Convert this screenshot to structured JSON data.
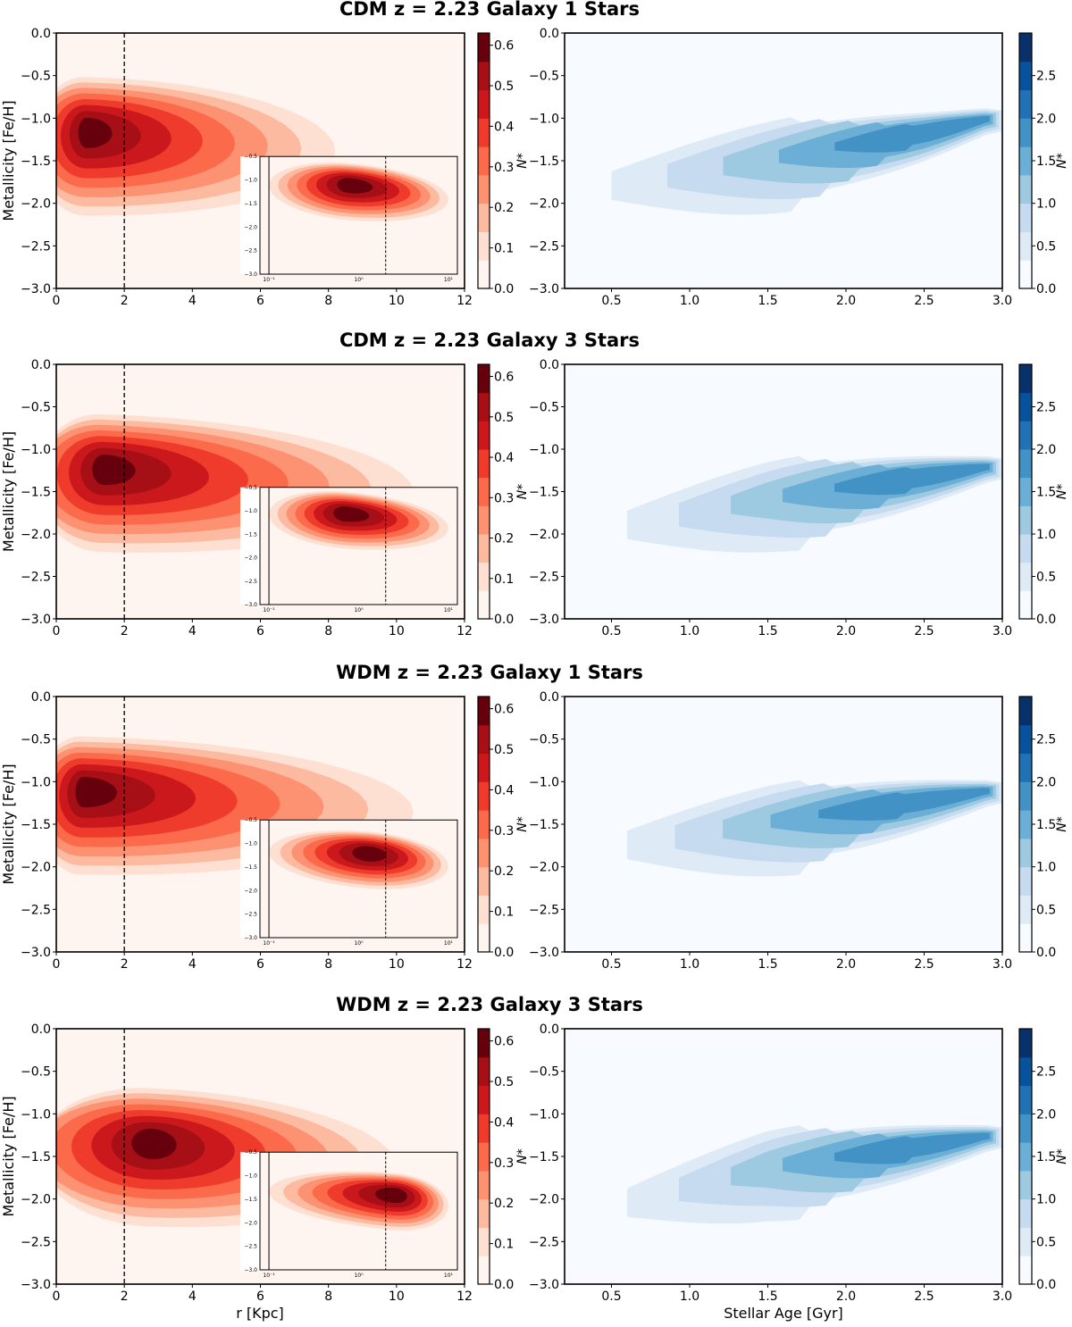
{
  "figure": {
    "x_label_left": "r [Kpc]",
    "x_label_right": "Stellar Age [Gyr]"
  },
  "colors": {
    "reds": [
      "#fff5f0",
      "#fee0d2",
      "#fcbba1",
      "#fc9272",
      "#fb6a4a",
      "#ef3b2c",
      "#cb181d",
      "#a50f15",
      "#67000d"
    ],
    "blues": [
      "#f7fbff",
      "#deebf7",
      "#c6dbef",
      "#9ecae1",
      "#6baed6",
      "#4292c6",
      "#2171b5",
      "#08519c",
      "#08306b"
    ]
  },
  "chart_data": [
    {
      "type": "heatmap",
      "title": "CDM z = 2.23 Galaxy 1 Stars",
      "left": {
        "xlabel": "r [Kpc]",
        "ylabel": "Metallicity [Fe/H]",
        "xlim": [
          0,
          12
        ],
        "ylim": [
          -3.0,
          0.0
        ],
        "xticks": [
          "0",
          "2",
          "4",
          "6",
          "8",
          "10",
          "12"
        ],
        "yticks": [
          "0.0",
          "-0.5",
          "-1.0",
          "-1.5",
          "-2.0",
          "-2.5",
          "-3.0"
        ],
        "vline_r": 2,
        "peak_r": 0.8,
        "peak_feh": -1.15,
        "tail_feh": -1.2,
        "slope": -0.01,
        "peak_level": 8,
        "extent_r": 8.2,
        "colorbar_label": "N*",
        "colorbar_ticks": [
          "0.0",
          "0.1",
          "0.2",
          "0.3",
          "0.4",
          "0.5",
          "0.6"
        ],
        "colorbar_max": 0.63,
        "inset": {
          "xscale": "log",
          "xticks": [
            "10⁻¹",
            "10⁰",
            "10¹"
          ],
          "yticks": [
            "-0.5",
            "-1.0",
            "-1.5",
            "-2.0",
            "-2.5",
            "-3.0"
          ],
          "solid_vline_r": 0.1,
          "dashed_vline_r": 2,
          "peak_logr": -0.1,
          "peak_feh": -1.1,
          "peak_level": 8
        }
      },
      "right": {
        "xlabel": "Stellar Age [Gyr]",
        "xlim": [
          0.2,
          3.0
        ],
        "ylim": [
          -3.0,
          0.0
        ],
        "xticks": [
          "0.5",
          "1.0",
          "1.5",
          "2.0",
          "2.5",
          "3.0"
        ],
        "yticks": [
          "0.0",
          "-0.5",
          "-1.0",
          "-1.5",
          "-2.0",
          "-2.5",
          "-3.0"
        ],
        "trend": [
          [
            0.5,
            -1.75
          ],
          [
            1.5,
            -1.45
          ],
          [
            2.5,
            -1.15
          ],
          [
            2.9,
            -1.0
          ]
        ],
        "peak_age": 2.6,
        "peak_feh": -1.12,
        "peak_level": 5,
        "colorbar_label": "N*",
        "colorbar_ticks": [
          "0.0",
          "0.5",
          "1.0",
          "1.5",
          "2.0",
          "2.5"
        ],
        "colorbar_max": 3.0
      }
    },
    {
      "type": "heatmap",
      "title": "CDM z = 2.23 Galaxy 3 Stars",
      "left": {
        "xlabel": "r [Kpc]",
        "ylabel": "Metallicity [Fe/H]",
        "xlim": [
          0,
          12
        ],
        "ylim": [
          -3.0,
          0.0
        ],
        "xticks": [
          "0",
          "2",
          "4",
          "6",
          "8",
          "10",
          "12"
        ],
        "yticks": [
          "0.0",
          "-0.5",
          "-1.0",
          "-1.5",
          "-2.0",
          "-2.5",
          "-3.0"
        ],
        "vline_r": 2,
        "peak_r": 1.3,
        "peak_feh": -1.22,
        "tail_feh": -1.3,
        "slope": -0.015,
        "peak_level": 8,
        "extent_r": 10.5,
        "colorbar_label": "N*",
        "colorbar_ticks": [
          "0.0",
          "0.1",
          "0.2",
          "0.3",
          "0.4",
          "0.5",
          "0.6"
        ],
        "colorbar_max": 0.63,
        "inset": {
          "xscale": "log",
          "xticks": [
            "10⁻¹",
            "10⁰",
            "10¹"
          ],
          "yticks": [
            "-0.5",
            "-1.0",
            "-1.5",
            "-2.0",
            "-2.5",
            "-3.0"
          ],
          "solid_vline_r": 0.1,
          "dashed_vline_r": 2,
          "peak_logr": -0.15,
          "peak_feh": -1.05,
          "peak_level": 8
        }
      },
      "right": {
        "xlabel": "Stellar Age [Gyr]",
        "xlim": [
          0.2,
          3.0
        ],
        "ylim": [
          -3.0,
          0.0
        ],
        "xticks": [
          "0.5",
          "1.0",
          "1.5",
          "2.0",
          "2.5",
          "3.0"
        ],
        "yticks": [
          "0.0",
          "-0.5",
          "-1.0",
          "-1.5",
          "-2.0",
          "-2.5",
          "-3.0"
        ],
        "trend": [
          [
            0.6,
            -1.85
          ],
          [
            1.5,
            -1.55
          ],
          [
            2.5,
            -1.3
          ],
          [
            2.9,
            -1.2
          ]
        ],
        "peak_age": 2.55,
        "peak_feh": -1.25,
        "peak_level": 5,
        "colorbar_label": "N*",
        "colorbar_ticks": [
          "0.0",
          "0.5",
          "1.0",
          "1.5",
          "2.0",
          "2.5"
        ],
        "colorbar_max": 3.0
      }
    },
    {
      "type": "heatmap",
      "title": "WDM z = 2.23 Galaxy 1 Stars",
      "left": {
        "xlabel": "r [Kpc]",
        "ylabel": "Metallicity [Fe/H]",
        "xlim": [
          0,
          12
        ],
        "ylim": [
          -3.0,
          0.0
        ],
        "xticks": [
          "0",
          "2",
          "4",
          "6",
          "8",
          "10",
          "12"
        ],
        "yticks": [
          "0.0",
          "-0.5",
          "-1.0",
          "-1.5",
          "-2.0",
          "-2.5",
          "-3.0"
        ],
        "vline_r": 2,
        "peak_r": 0.7,
        "peak_feh": -1.1,
        "tail_feh": -1.2,
        "slope": -0.01,
        "peak_level": 8,
        "extent_r": 10.5,
        "colorbar_label": "N*",
        "colorbar_ticks": [
          "0.0",
          "0.1",
          "0.2",
          "0.3",
          "0.4",
          "0.5",
          "0.6"
        ],
        "colorbar_max": 0.63,
        "inset": {
          "xscale": "log",
          "xticks": [
            "10⁻¹",
            "10⁰",
            "10¹"
          ],
          "yticks": [
            "-0.5",
            "-1.0",
            "-1.5",
            "-2.0",
            "-2.5",
            "-3.0"
          ],
          "solid_vline_r": 0.1,
          "dashed_vline_r": 2,
          "peak_logr": 0.1,
          "peak_feh": -1.2,
          "peak_level": 8
        }
      },
      "right": {
        "xlabel": "Stellar Age [Gyr]",
        "xlim": [
          0.2,
          3.0
        ],
        "ylim": [
          -3.0,
          0.0
        ],
        "xticks": [
          "0.5",
          "1.0",
          "1.5",
          "2.0",
          "2.5",
          "3.0"
        ],
        "yticks": [
          "0.0",
          "-0.5",
          "-1.0",
          "-1.5",
          "-2.0",
          "-2.5",
          "-3.0"
        ],
        "trend": [
          [
            0.6,
            -1.7
          ],
          [
            1.5,
            -1.45
          ],
          [
            2.5,
            -1.2
          ],
          [
            2.9,
            -1.1
          ]
        ],
        "peak_age": 2.4,
        "peak_feh": -1.25,
        "peak_level": 5,
        "colorbar_label": "N*",
        "colorbar_ticks": [
          "0.0",
          "0.5",
          "1.0",
          "1.5",
          "2.0",
          "2.5"
        ],
        "colorbar_max": 3.0
      }
    },
    {
      "type": "heatmap",
      "title": "WDM z = 2.23 Galaxy 3 Stars",
      "left": {
        "xlabel": "r [Kpc]",
        "ylabel": "Metallicity [Fe/H]",
        "xlim": [
          0,
          12
        ],
        "ylim": [
          -3.0,
          0.0
        ],
        "xticks": [
          "0",
          "2",
          "4",
          "6",
          "8",
          "10",
          "12"
        ],
        "yticks": [
          "0.0",
          "-0.5",
          "-1.0",
          "-1.5",
          "-2.0",
          "-2.5",
          "-3.0"
        ],
        "vline_r": 2,
        "peak_r": 2.7,
        "peak_feh": -1.33,
        "tail_feh": -1.4,
        "slope": -0.02,
        "peak_level": 8,
        "extent_r": 10.0,
        "colorbar_label": "N*",
        "colorbar_ticks": [
          "0.0",
          "0.1",
          "0.2",
          "0.3",
          "0.4",
          "0.5",
          "0.6"
        ],
        "colorbar_max": 0.63,
        "inset": {
          "xscale": "log",
          "xticks": [
            "10⁻¹",
            "10⁰",
            "10¹"
          ],
          "yticks": [
            "-0.5",
            "-1.0",
            "-1.5",
            "-2.0",
            "-2.5",
            "-3.0"
          ],
          "solid_vline_r": 0.1,
          "dashed_vline_r": 2,
          "peak_logr": 0.4,
          "peak_feh": -1.4,
          "peak_level": 8
        }
      },
      "right": {
        "xlabel": "Stellar Age [Gyr]",
        "xlim": [
          0.2,
          3.0
        ],
        "ylim": [
          -3.0,
          0.0
        ],
        "xticks": [
          "0.5",
          "1.0",
          "1.5",
          "2.0",
          "2.5",
          "3.0"
        ],
        "yticks": [
          "0.0",
          "-0.5",
          "-1.0",
          "-1.5",
          "-2.0",
          "-2.5",
          "-3.0"
        ],
        "trend": [
          [
            0.6,
            -2.0
          ],
          [
            1.5,
            -1.6
          ],
          [
            2.5,
            -1.35
          ],
          [
            2.9,
            -1.25
          ]
        ],
        "peak_age": 2.55,
        "peak_feh": -1.32,
        "peak_level": 5,
        "colorbar_label": "N*",
        "colorbar_ticks": [
          "0.0",
          "0.5",
          "1.0",
          "1.5",
          "2.0",
          "2.5"
        ],
        "colorbar_max": 3.0
      }
    }
  ]
}
